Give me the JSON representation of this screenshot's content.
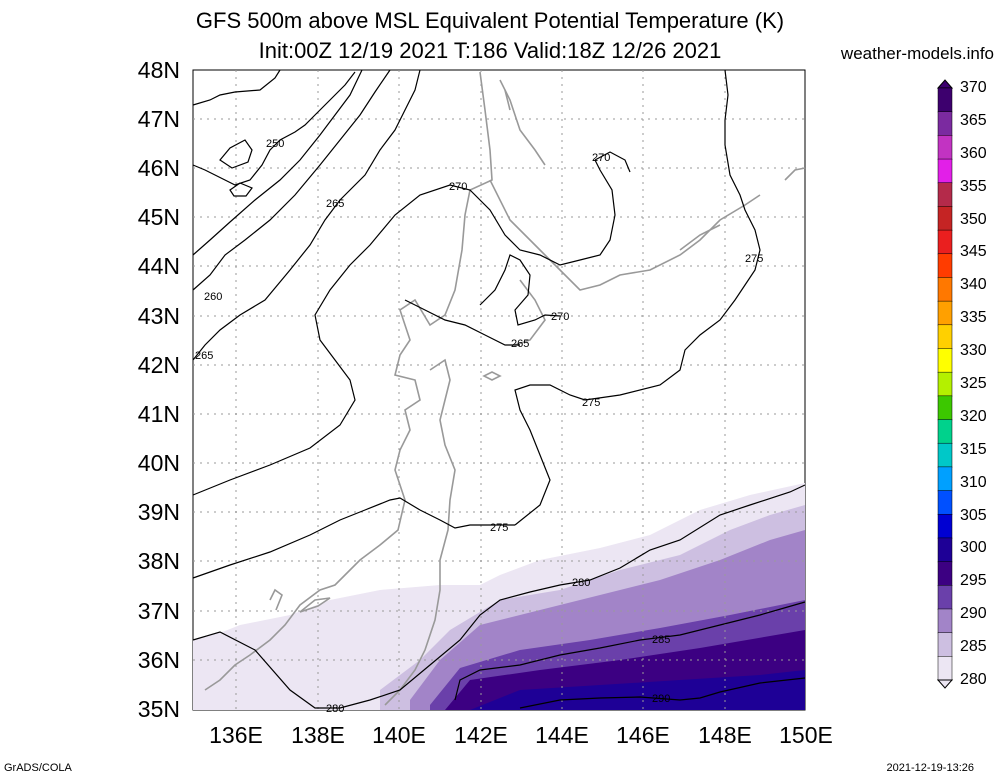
{
  "title_line1": "GFS 500m above MSL Equivalent Potential Temperature (K)",
  "title_line2": "Init:00Z 12/19 2021 T:186 Valid:18Z 12/26 2021",
  "site": "weather-models.info",
  "credit": "GrADS/COLA",
  "timestamp": "2021-12-19-13:26",
  "map": {
    "lat_labels": [
      "48N",
      "47N",
      "46N",
      "45N",
      "44N",
      "43N",
      "42N",
      "41N",
      "40N",
      "39N",
      "38N",
      "37N",
      "36N",
      "35N"
    ],
    "lon_labels": [
      "136E",
      "138E",
      "140E",
      "142E",
      "144E",
      "146E",
      "148E",
      "150E"
    ],
    "contour_labels": [
      "250",
      "265",
      "260",
      "265",
      "270",
      "270",
      "275",
      "270",
      "265",
      "275",
      "275",
      "280",
      "285",
      "290",
      "280"
    ]
  },
  "colorbar": {
    "labels": [
      "370",
      "365",
      "360",
      "355",
      "350",
      "345",
      "340",
      "335",
      "330",
      "325",
      "320",
      "315",
      "310",
      "305",
      "300",
      "295",
      "290",
      "285",
      "280"
    ],
    "colors": [
      "#3d006e",
      "#7b2aa0",
      "#c233c2",
      "#e21fe8",
      "#b42a4a",
      "#c52424",
      "#ea1f1f",
      "#ff3c00",
      "#ff7800",
      "#ffa000",
      "#ffd000",
      "#ffff00",
      "#b4f000",
      "#3cc800",
      "#00d28c",
      "#00c8c8",
      "#00a0ff",
      "#0050ff",
      "#0000d2",
      "#1e0096",
      "#3c0082",
      "#6a40aa",
      "#a284c8",
      "#cdbfe1",
      "#ece6f3"
    ]
  }
}
